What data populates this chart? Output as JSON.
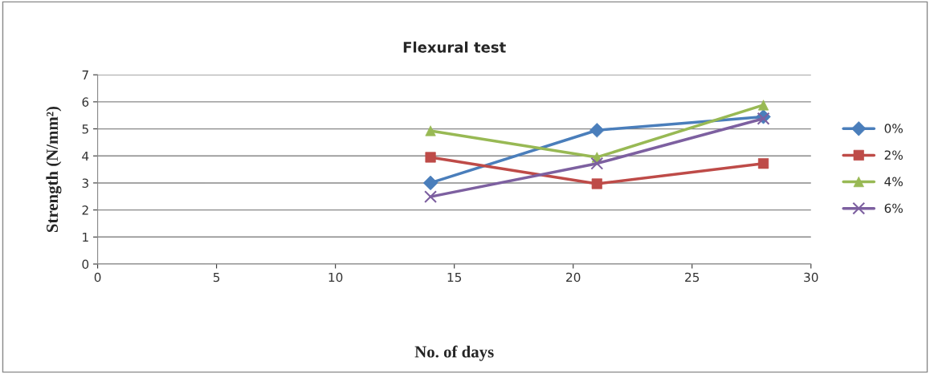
{
  "chart_data": {
    "type": "line",
    "title": "Flexural test",
    "xlabel": "No. of days",
    "ylabel": "Strength (N/mm²)",
    "x": [
      14,
      21,
      28
    ],
    "series": [
      {
        "name": "0%",
        "color": "#4a7ebb",
        "marker": "diamond",
        "values": [
          3.0,
          4.95,
          5.45
        ]
      },
      {
        "name": "2%",
        "color": "#be4b48",
        "marker": "square",
        "values": [
          3.95,
          2.97,
          3.72
        ]
      },
      {
        "name": "4%",
        "color": "#98b954",
        "marker": "triangle",
        "values": [
          4.93,
          3.95,
          5.88
        ]
      },
      {
        "name": "6%",
        "color": "#7d60a0",
        "marker": "cross",
        "values": [
          2.49,
          3.72,
          5.38
        ]
      }
    ],
    "xlim": [
      0,
      30
    ],
    "xticks": [
      0,
      5,
      10,
      15,
      20,
      25,
      30
    ],
    "ylim": [
      0,
      7
    ],
    "yticks": [
      0,
      1,
      2,
      3,
      4,
      5,
      6,
      7
    ],
    "grid": "y",
    "legend": "right",
    "line_style": "solid"
  }
}
